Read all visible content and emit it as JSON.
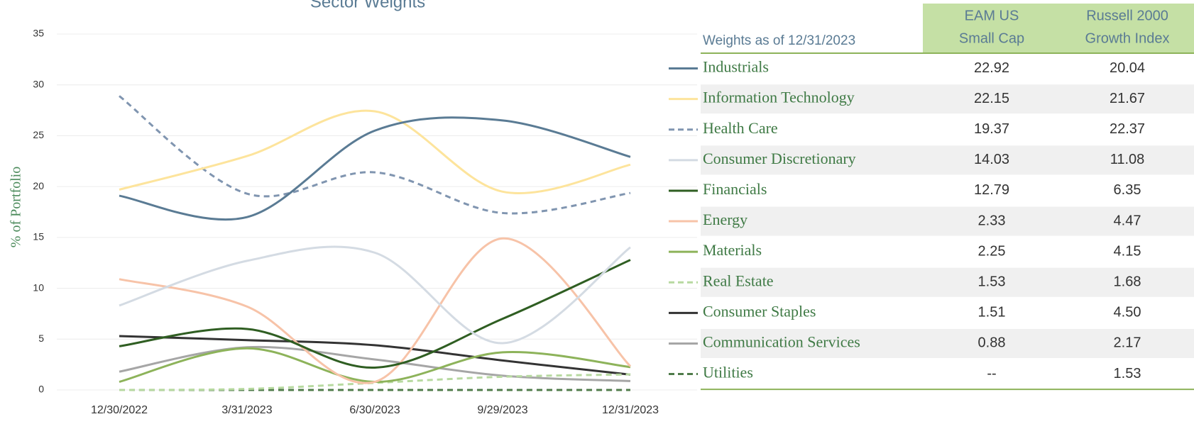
{
  "chart_data": {
    "type": "line",
    "title": "Sector Weights",
    "y_label": "% of Portfolio",
    "categories": [
      "12/30/2022",
      "3/31/2023",
      "6/30/2023",
      "9/29/2023",
      "12/31/2023"
    ],
    "ylim": [
      0,
      35
    ],
    "yticks": [
      0,
      5,
      10,
      15,
      20,
      25,
      30,
      35
    ],
    "grid": true,
    "series": [
      {
        "name": "Industrials",
        "color": "#5a7b94",
        "dash": false,
        "values": [
          19.1,
          17.0,
          25.5,
          26.5,
          22.92
        ]
      },
      {
        "name": "Information Technology",
        "color": "#fde49c",
        "dash": false,
        "values": [
          19.7,
          23.0,
          27.4,
          19.5,
          22.15
        ]
      },
      {
        "name": "Health Care",
        "color": "#8095b0",
        "dash": true,
        "values": [
          28.9,
          19.3,
          21.4,
          17.4,
          19.37
        ]
      },
      {
        "name": "Consumer Discretionary",
        "color": "#d4dbe3",
        "dash": false,
        "values": [
          8.3,
          12.7,
          13.5,
          4.6,
          14.03
        ]
      },
      {
        "name": "Financials",
        "color": "#2f5e22",
        "dash": false,
        "values": [
          4.3,
          6.0,
          2.2,
          7.0,
          12.79
        ]
      },
      {
        "name": "Energy",
        "color": "#f7c3a8",
        "dash": false,
        "values": [
          10.9,
          8.2,
          0.8,
          14.9,
          2.33
        ]
      },
      {
        "name": "Materials",
        "color": "#8db35a",
        "dash": false,
        "values": [
          0.8,
          4.1,
          0.8,
          3.7,
          2.25
        ]
      },
      {
        "name": "Real Estate",
        "color": "#b7d9a0",
        "dash": true,
        "values": [
          0,
          0.1,
          0.7,
          1.3,
          1.53
        ]
      },
      {
        "name": "Consumer Staples",
        "color": "#333333",
        "dash": false,
        "values": [
          5.3,
          4.9,
          4.4,
          2.9,
          1.51
        ]
      },
      {
        "name": "Communication Services",
        "color": "#a6a6a6",
        "dash": false,
        "values": [
          1.8,
          4.2,
          3.0,
          1.4,
          0.88
        ]
      },
      {
        "name": "Utilities",
        "color": "#4f7b4a",
        "dash": true,
        "values": [
          0,
          0,
          0,
          0,
          0
        ]
      }
    ]
  },
  "table": {
    "caption": "Weights as of 12/31/2023",
    "columns": [
      [
        "EAM US",
        "Small Cap"
      ],
      [
        "Russell 2000",
        "Growth Index"
      ]
    ],
    "rows": [
      [
        "22.92",
        "20.04"
      ],
      [
        "22.15",
        "21.67"
      ],
      [
        "19.37",
        "22.37"
      ],
      [
        "14.03",
        "11.08"
      ],
      [
        "12.79",
        "6.35"
      ],
      [
        "2.33",
        "4.47"
      ],
      [
        "2.25",
        "4.15"
      ],
      [
        "1.53",
        "1.68"
      ],
      [
        "1.51",
        "4.50"
      ],
      [
        "0.88",
        "2.17"
      ],
      [
        "--",
        "1.53"
      ]
    ]
  }
}
